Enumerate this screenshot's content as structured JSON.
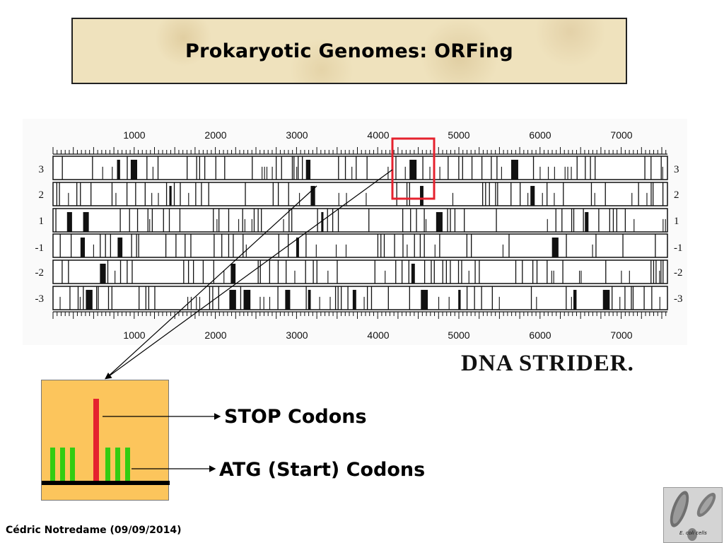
{
  "slide": {
    "title": "Prokaryotic Genomes: ORFing",
    "software_label": "DNA STRIDER.",
    "author": "Cédric Notredame (09/09/2014)"
  },
  "strider": {
    "axis_ticks": [
      "1000",
      "2000",
      "3000",
      "4000",
      "5000",
      "6000",
      "7000"
    ],
    "frames": [
      "3",
      "2",
      "1",
      "-1",
      "-2",
      "-3"
    ]
  },
  "legend": {
    "stop_label": "STOP Codons",
    "atg_label": "ATG (Start) Codons"
  },
  "colors": {
    "highlight_box": "#e5222e",
    "stop_codon": "#e5222e",
    "start_codon": "#33cc11",
    "zoom_background": "#fcc55c",
    "title_background": "#efe2bd"
  },
  "thumbnail": {
    "caption": "E. coli cells"
  }
}
